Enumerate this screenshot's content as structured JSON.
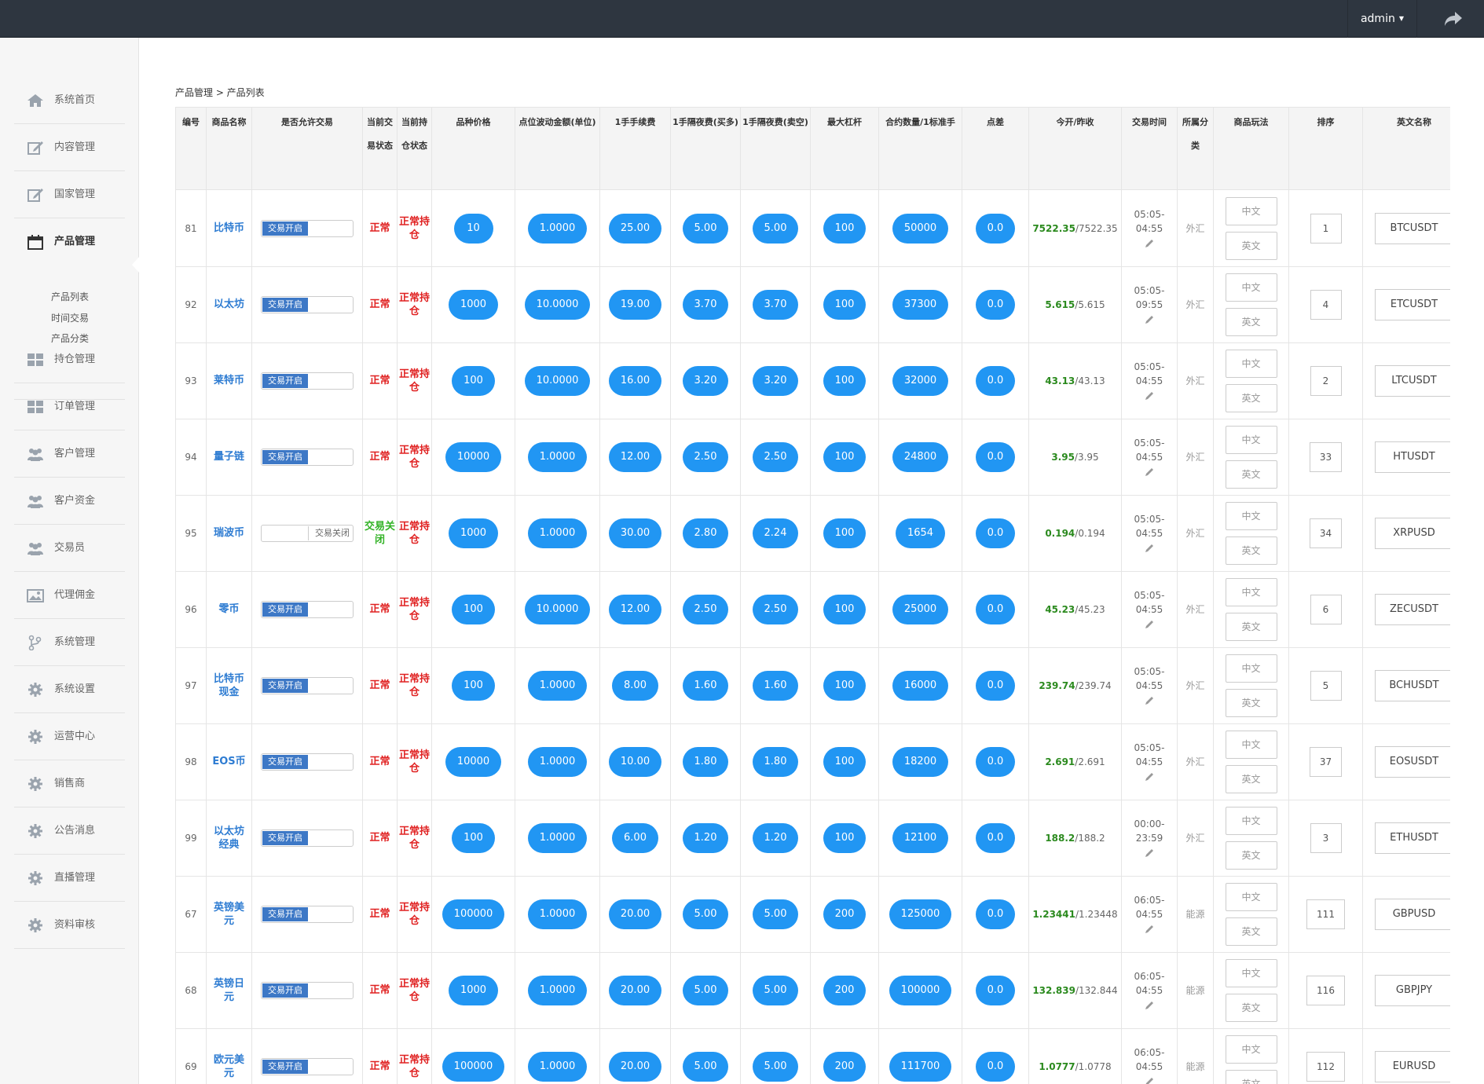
{
  "topbar": {
    "user": "admin"
  },
  "breadcrumb": "产品管理 > 产品列表",
  "sidebar": {
    "items": [
      {
        "label": "系统首页",
        "icon": "home-icon"
      },
      {
        "label": "内容管理",
        "icon": "edit-icon"
      },
      {
        "label": "国家管理",
        "icon": "edit-icon"
      },
      {
        "label": "产品管理",
        "icon": "calendar-icon",
        "active": true
      },
      {
        "label": "持仓管理",
        "icon": "grid-icon"
      },
      {
        "label": "订单管理",
        "icon": "grid-icon"
      },
      {
        "label": "客户管理",
        "icon": "users-icon"
      },
      {
        "label": "客户资金",
        "icon": "users-icon"
      },
      {
        "label": "交易员",
        "icon": "users-icon"
      },
      {
        "label": "代理佣金",
        "icon": "image-icon"
      },
      {
        "label": "系统管理",
        "icon": "branch-icon"
      },
      {
        "label": "系统设置",
        "icon": "gear-icon"
      },
      {
        "label": "运营中心",
        "icon": "gear-icon"
      },
      {
        "label": "销售商",
        "icon": "gear-icon"
      },
      {
        "label": "公告消息",
        "icon": "gear-icon"
      },
      {
        "label": "直播管理",
        "icon": "gear-icon"
      },
      {
        "label": "资料审核",
        "icon": "gear-icon"
      }
    ],
    "subitems": [
      "产品列表",
      "时间交易",
      "产品分类"
    ]
  },
  "table": {
    "headers": [
      "编号",
      "商品名称",
      "是否允许交易",
      "当前交易状态",
      "当前持仓状态",
      "品种价格",
      "点位波动金额(单位)",
      "1手手续费",
      "1手隔夜费(买多)",
      "1手隔夜费(卖空)",
      "最大杠杆",
      "合约数量/1标准手",
      "点差",
      "今开/昨收",
      "交易时间",
      "所属分类",
      "商品玩法",
      "排序",
      "英文名称"
    ],
    "toggle_on": "交易开启",
    "toggle_off": "交易关闭",
    "lang_cn": "中文",
    "lang_en": "英文",
    "rows": [
      {
        "id": "81",
        "name": "比特币",
        "allow": true,
        "state": "正常",
        "hold": "正常持仓",
        "price": "10",
        "tick": "1.0000",
        "fee": "25.00",
        "swap_buy": "5.00",
        "swap_sell": "5.00",
        "leverage": "100",
        "contract": "50000",
        "spread": "0.0",
        "open": "7522.35",
        "close": "/7522.35",
        "time_start": "05:05-",
        "time_end": "04:55",
        "category": "外汇",
        "sort": "1",
        "en": "BTCUSDT"
      },
      {
        "id": "92",
        "name": "以太坊",
        "allow": true,
        "state": "正常",
        "hold": "正常持仓",
        "price": "1000",
        "tick": "10.0000",
        "fee": "19.00",
        "swap_buy": "3.70",
        "swap_sell": "3.70",
        "leverage": "100",
        "contract": "37300",
        "spread": "0.0",
        "open": "5.615",
        "close": "/5.615",
        "time_start": "05:05-",
        "time_end": "09:55",
        "category": "外汇",
        "sort": "4",
        "en": "ETCUSDT"
      },
      {
        "id": "93",
        "name": "莱特币",
        "allow": true,
        "state": "正常",
        "hold": "正常持仓",
        "price": "100",
        "tick": "10.0000",
        "fee": "16.00",
        "swap_buy": "3.20",
        "swap_sell": "3.20",
        "leverage": "100",
        "contract": "32000",
        "spread": "0.0",
        "open": "43.13",
        "close": "/43.13",
        "time_start": "05:05-",
        "time_end": "04:55",
        "category": "外汇",
        "sort": "2",
        "en": "LTCUSDT"
      },
      {
        "id": "94",
        "name": "量子链",
        "allow": true,
        "state": "正常",
        "hold": "正常持仓",
        "price": "10000",
        "tick": "1.0000",
        "fee": "12.00",
        "swap_buy": "2.50",
        "swap_sell": "2.50",
        "leverage": "100",
        "contract": "24800",
        "spread": "0.0",
        "open": "3.95",
        "close": "/3.95",
        "time_start": "05:05-",
        "time_end": "04:55",
        "category": "外汇",
        "sort": "33",
        "en": "HTUSDT"
      },
      {
        "id": "95",
        "name": "瑞波币",
        "allow": false,
        "state": "交易关闭",
        "hold": "正常持仓",
        "price": "1000",
        "tick": "1.0000",
        "fee": "30.00",
        "swap_buy": "2.80",
        "swap_sell": "2.24",
        "leverage": "100",
        "contract": "1654",
        "spread": "0.0",
        "open": "0.194",
        "close": "/0.194",
        "time_start": "05:05-",
        "time_end": "04:55",
        "category": "外汇",
        "sort": "34",
        "en": "XRPUSD"
      },
      {
        "id": "96",
        "name": "零币",
        "allow": true,
        "state": "正常",
        "hold": "正常持仓",
        "price": "100",
        "tick": "10.0000",
        "fee": "12.00",
        "swap_buy": "2.50",
        "swap_sell": "2.50",
        "leverage": "100",
        "contract": "25000",
        "spread": "0.0",
        "open": "45.23",
        "close": "/45.23",
        "time_start": "05:05-",
        "time_end": "04:55",
        "category": "外汇",
        "sort": "6",
        "en": "ZECUSDT"
      },
      {
        "id": "97",
        "name": "比特币现金",
        "allow": true,
        "state": "正常",
        "hold": "正常持仓",
        "price": "100",
        "tick": "1.0000",
        "fee": "8.00",
        "swap_buy": "1.60",
        "swap_sell": "1.60",
        "leverage": "100",
        "contract": "16000",
        "spread": "0.0",
        "open": "239.74",
        "close": "/239.74",
        "time_start": "05:05-",
        "time_end": "04:55",
        "category": "外汇",
        "sort": "5",
        "en": "BCHUSDT"
      },
      {
        "id": "98",
        "name": "EOS币",
        "allow": true,
        "state": "正常",
        "hold": "正常持仓",
        "price": "10000",
        "tick": "1.0000",
        "fee": "10.00",
        "swap_buy": "1.80",
        "swap_sell": "1.80",
        "leverage": "100",
        "contract": "18200",
        "spread": "0.0",
        "open": "2.691",
        "close": "/2.691",
        "time_start": "05:05-",
        "time_end": "04:55",
        "category": "外汇",
        "sort": "37",
        "en": "EOSUSDT"
      },
      {
        "id": "99",
        "name": "以太坊经典",
        "allow": true,
        "state": "正常",
        "hold": "正常持仓",
        "price": "100",
        "tick": "1.0000",
        "fee": "6.00",
        "swap_buy": "1.20",
        "swap_sell": "1.20",
        "leverage": "100",
        "contract": "12100",
        "spread": "0.0",
        "open": "188.2",
        "close": "/188.2",
        "time_start": "00:00-",
        "time_end": "23:59",
        "category": "外汇",
        "sort": "3",
        "en": "ETHUSDT"
      },
      {
        "id": "67",
        "name": "英镑美元",
        "allow": true,
        "state": "正常",
        "hold": "正常持仓",
        "price": "100000",
        "tick": "1.0000",
        "fee": "20.00",
        "swap_buy": "5.00",
        "swap_sell": "5.00",
        "leverage": "200",
        "contract": "125000",
        "spread": "0.0",
        "open": "1.23441",
        "close": "/1.23448",
        "time_start": "06:05-",
        "time_end": "04:55",
        "category": "能源",
        "sort": "111",
        "en": "GBPUSD"
      },
      {
        "id": "68",
        "name": "英镑日元",
        "allow": true,
        "state": "正常",
        "hold": "正常持仓",
        "price": "1000",
        "tick": "1.0000",
        "fee": "20.00",
        "swap_buy": "5.00",
        "swap_sell": "5.00",
        "leverage": "200",
        "contract": "100000",
        "spread": "0.0",
        "open": "132.839",
        "close": "/132.844",
        "time_start": "06:05-",
        "time_end": "04:55",
        "category": "能源",
        "sort": "116",
        "en": "GBPJPY"
      },
      {
        "id": "69",
        "name": "欧元美元",
        "allow": true,
        "state": "正常",
        "hold": "正常持仓",
        "price": "100000",
        "tick": "1.0000",
        "fee": "20.00",
        "swap_buy": "5.00",
        "swap_sell": "5.00",
        "leverage": "200",
        "contract": "111700",
        "spread": "0.0",
        "open": "1.0777",
        "close": "/1.0778",
        "time_start": "06:05-",
        "time_end": "04:55",
        "category": "能源",
        "sort": "112",
        "en": "EURUSD"
      }
    ]
  }
}
